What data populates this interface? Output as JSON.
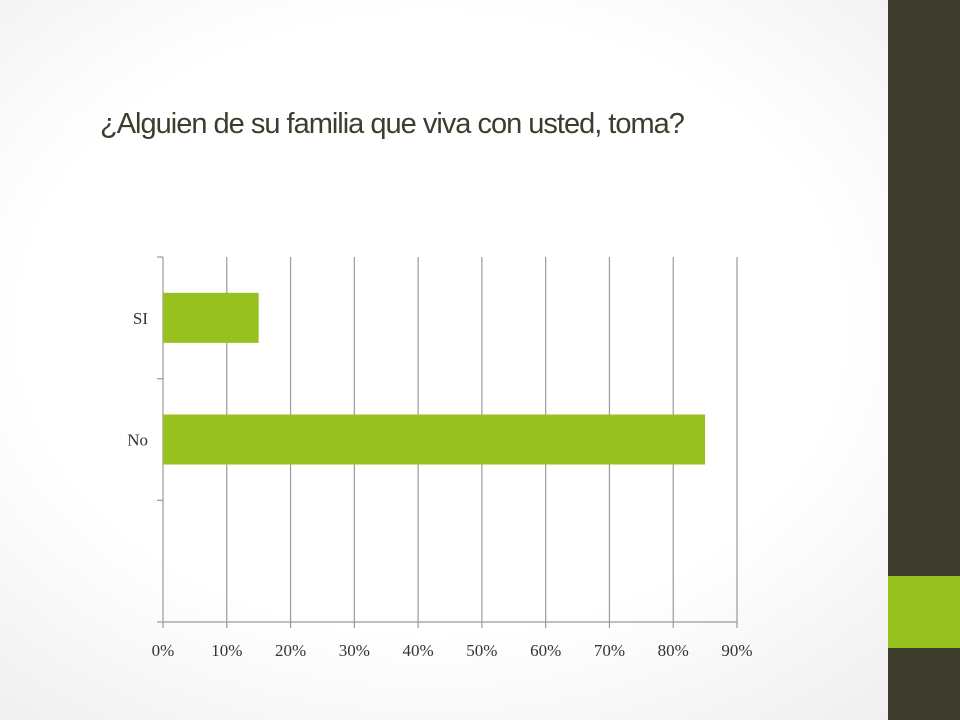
{
  "slide": {
    "title": "¿Alguien de su familia que viva con usted, toma?",
    "colors": {
      "sidebar": "#3e3d2d",
      "accent": "#96c11f",
      "bar": "#96c11f",
      "grid": "#9a9a9a"
    }
  },
  "chart_data": {
    "type": "bar",
    "orientation": "horizontal",
    "title": "",
    "xlabel": "",
    "ylabel": "",
    "categories": [
      "SI",
      "No"
    ],
    "values": [
      0.15,
      0.85
    ],
    "xlim": [
      0,
      0.9
    ],
    "x_ticks": [
      "0%",
      "10%",
      "20%",
      "30%",
      "40%",
      "50%",
      "60%",
      "70%",
      "80%",
      "90%"
    ],
    "grid": true,
    "legend": "none"
  }
}
